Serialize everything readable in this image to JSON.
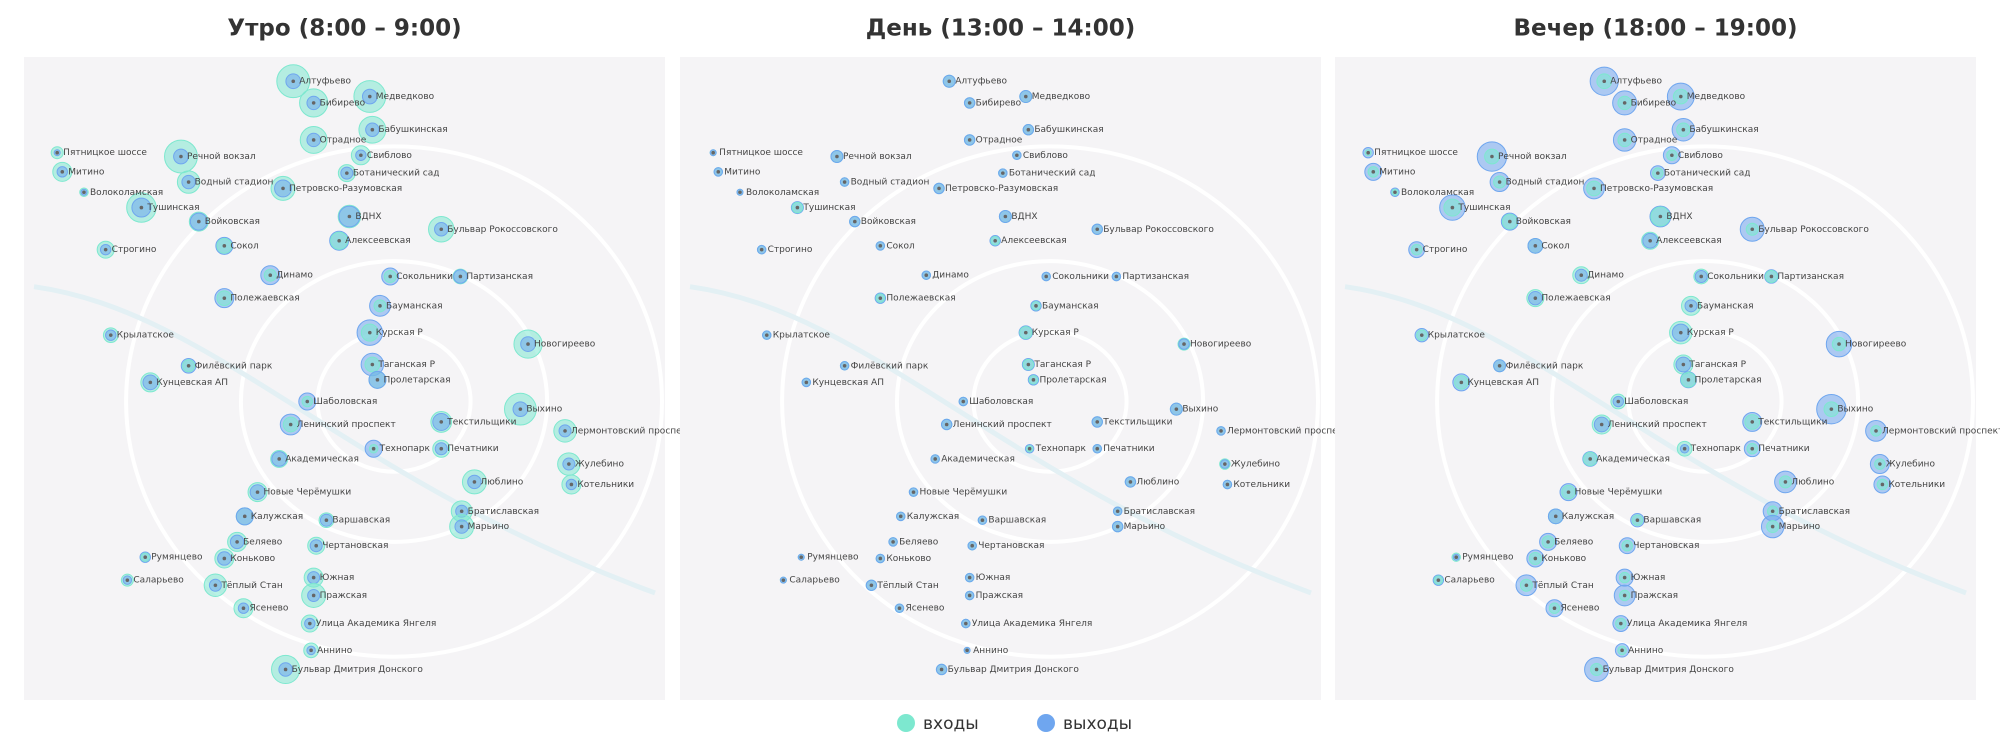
{
  "panels": [
    {
      "title": "Утро (8:00 – 9:00)",
      "entries": [
        30,
        22,
        28,
        20,
        20,
        10,
        8,
        4,
        30,
        10,
        14,
        2,
        16,
        24,
        14,
        10,
        18,
        8,
        8,
        6,
        4,
        4,
        6,
        6,
        4,
        6,
        8,
        22,
        4,
        6,
        10,
        8,
        3,
        28,
        6,
        12,
        14,
        2,
        8,
        8,
        14,
        16,
        10,
        10,
        12,
        8,
        16,
        6,
        10,
        8,
        2,
        10,
        4,
        14,
        10,
        16,
        10,
        8,
        6,
        22
      ],
      "exits": [
        6,
        5,
        6,
        5,
        5,
        3,
        4,
        1,
        6,
        3,
        5,
        1,
        8,
        10,
        12,
        8,
        5,
        10,
        3,
        8,
        10,
        8,
        5,
        10,
        12,
        3,
        18,
        6,
        6,
        14,
        6,
        8,
        8,
        6,
        12,
        8,
        4,
        8,
        4,
        6,
        4,
        5,
        3,
        6,
        4,
        8,
        5,
        4,
        5,
        4,
        3,
        5,
        2,
        4,
        4,
        4,
        3,
        3,
        2,
        5
      ]
    },
    {
      "title": "День (13:00 – 14:00)",
      "entries": [
        4,
        3,
        4,
        3,
        3,
        2,
        2,
        1,
        4,
        2,
        2,
        1,
        3,
        3,
        4,
        3,
        3,
        2,
        2,
        2,
        2,
        2,
        2,
        2,
        2,
        2,
        4,
        4,
        2,
        3,
        2,
        2,
        2,
        4,
        3,
        3,
        2,
        1,
        2,
        2,
        3,
        3,
        2,
        2,
        2,
        2,
        3,
        2,
        2,
        2,
        1,
        2,
        1,
        3,
        2,
        2,
        2,
        2,
        1,
        3
      ],
      "exits": [
        4,
        3,
        4,
        3,
        3,
        2,
        2,
        1,
        4,
        2,
        2,
        1,
        3,
        4,
        4,
        3,
        3,
        3,
        2,
        2,
        2,
        2,
        2,
        3,
        3,
        2,
        5,
        3,
        2,
        4,
        2,
        3,
        2,
        4,
        3,
        3,
        2,
        2,
        2,
        2,
        2,
        3,
        2,
        2,
        2,
        2,
        3,
        2,
        2,
        2,
        1,
        2,
        1,
        3,
        2,
        2,
        2,
        2,
        1,
        3
      ]
    },
    {
      "title": "Вечер (18:00 – 19:00)",
      "entries": [
        6,
        5,
        6,
        5,
        5,
        3,
        3,
        1,
        6,
        3,
        4,
        1,
        6,
        8,
        10,
        6,
        4,
        8,
        3,
        6,
        8,
        6,
        4,
        8,
        10,
        3,
        14,
        5,
        4,
        10,
        5,
        6,
        6,
        6,
        10,
        6,
        3,
        6,
        3,
        5,
        3,
        4,
        3,
        5,
        3,
        6,
        4,
        3,
        4,
        3,
        2,
        4,
        2,
        4,
        3,
        3,
        3,
        3,
        2,
        4
      ],
      "exits": [
        22,
        16,
        20,
        14,
        14,
        8,
        6,
        3,
        24,
        8,
        10,
        2,
        12,
        18,
        12,
        8,
        16,
        6,
        7,
        6,
        4,
        4,
        5,
        5,
        4,
        5,
        8,
        18,
        4,
        6,
        8,
        7,
        3,
        24,
        6,
        10,
        12,
        2,
        7,
        6,
        10,
        13,
        8,
        8,
        10,
        6,
        14,
        5,
        8,
        7,
        1,
        8,
        3,
        12,
        8,
        12,
        8,
        7,
        5,
        16
      ]
    }
  ],
  "stations": [
    "Алтуфьево",
    "Бибирево",
    "Медведково",
    "Бабушкинская",
    "Отрадное",
    "Свиблово",
    "Ботанический сад",
    "Пятницкое шоссе",
    "Речной вокзал",
    "Митино",
    "Водный стадион",
    "Волоколамская",
    "Петровско-Разумовская",
    "Тушинская",
    "ВДНХ",
    "Войковская",
    "Бульвар Рокоссовского",
    "Алексеевская",
    "Строгино",
    "Сокол",
    "Динамо",
    "Сокольники",
    "Партизанская",
    "Полежаевская",
    "Бауманская",
    "Крылатское",
    "Курская Р",
    "Новогиреево",
    "Филёвский парк",
    "Таганская Р",
    "Кунцевская АП",
    "Пролетарская",
    "Шаболовская",
    "Выхино",
    "Ленинский проспект",
    "Текстильщики",
    "Лермонтовский проспект",
    "Технопарк",
    "Печатники",
    "Академическая",
    "Жулебино",
    "Люблино",
    "Котельники",
    "Новые Черёмушки",
    "Братиславская",
    "Калужская",
    "Марьино",
    "Варшавская",
    "Беляево",
    "Чертановская",
    "Румянцево",
    "Коньково",
    "Саларьево",
    "Тёплый Стан",
    "Южная",
    "Пражская",
    "Ясенево",
    "Улица Академика Янгеля",
    "Аннино",
    "Бульвар Дмитрия Донского"
  ],
  "legend": [
    {
      "name": "входы",
      "color": "#7de8cf"
    },
    {
      "name": "выходы",
      "color": "#6fa6ef"
    }
  ]
}
